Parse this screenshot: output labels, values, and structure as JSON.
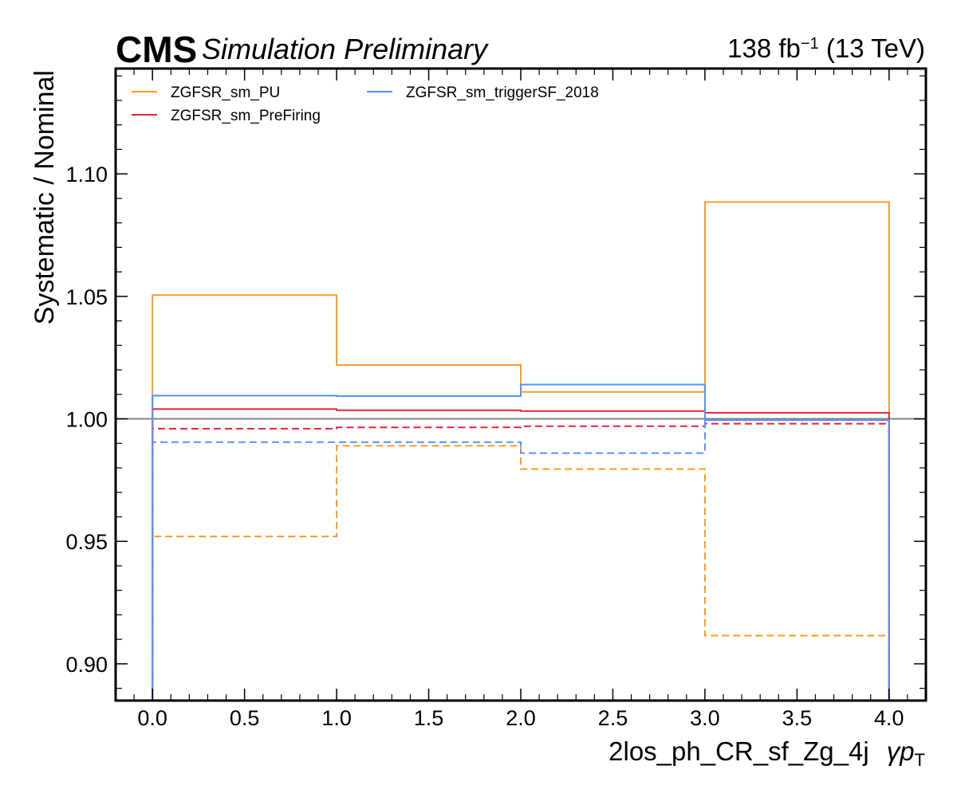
{
  "header": {
    "cms": "CMS",
    "subtitle": "Simulation Preliminary",
    "lumi_value": "138 fb",
    "lumi_exp": "−1",
    "lumi_energy": " (13 TeV)"
  },
  "chart_data": {
    "type": "line",
    "step": true,
    "xlabel": "2los_ph_CR_sf_Zg_4j",
    "xlabel_var": "γp",
    "xlabel_var_sub": "T",
    "ylabel": "Systematic / Nominal",
    "xlim": [
      -0.2,
      4.2
    ],
    "ylim": [
      0.885,
      1.143
    ],
    "x_ticks": [
      0.0,
      0.5,
      1.0,
      1.5,
      2.0,
      2.5,
      3.0,
      3.5,
      4.0
    ],
    "x_tick_labels": [
      "0.0",
      "0.5",
      "1.0",
      "1.5",
      "2.0",
      "2.5",
      "3.0",
      "3.5",
      "4.0"
    ],
    "y_ticks": [
      0.9,
      0.95,
      1.0,
      1.05,
      1.1
    ],
    "y_tick_labels": [
      "0.90",
      "0.95",
      "1.00",
      "1.05",
      "1.10"
    ],
    "bin_edges": [
      0,
      1,
      2,
      3,
      4
    ],
    "reference_line": 1.0,
    "legend_position": "top-left",
    "series": [
      {
        "name": "ZGFSR_sm_PU",
        "color": "#f89c20",
        "up": [
          1.0505,
          1.022,
          1.011,
          1.0885
        ],
        "down": [
          0.952,
          0.989,
          0.9795,
          0.9115
        ]
      },
      {
        "name": "ZGFSR_sm_PreFiring",
        "color": "#e42536",
        "up": [
          1.004,
          1.0035,
          1.0032,
          1.0025
        ],
        "down": [
          0.996,
          0.9965,
          0.997,
          0.998
        ]
      },
      {
        "name": "ZGFSR_sm_triggerSF_2018",
        "color": "#5790fc",
        "up": [
          1.0095,
          1.0093,
          1.014,
          0.9995
        ],
        "down": [
          0.9905,
          0.9905,
          0.986,
          0.9995
        ]
      }
    ]
  }
}
